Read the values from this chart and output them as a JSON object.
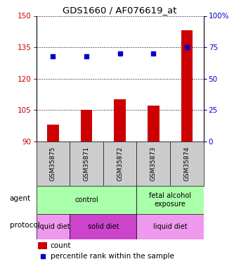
{
  "title": "GDS1660 / AF076619_at",
  "samples": [
    "GSM35875",
    "GSM35871",
    "GSM35872",
    "GSM35873",
    "GSM35874"
  ],
  "bar_values": [
    98,
    105,
    110,
    107,
    143
  ],
  "percentile_values": [
    68,
    68,
    70,
    70,
    75
  ],
  "left_ylim": [
    90,
    150
  ],
  "right_ylim": [
    0,
    100
  ],
  "left_yticks": [
    90,
    105,
    120,
    135,
    150
  ],
  "right_yticks": [
    0,
    25,
    50,
    75,
    100
  ],
  "bar_color": "#cc0000",
  "dot_color": "#0000cc",
  "agent_labels": [
    {
      "text": "control",
      "start": 0,
      "end": 3,
      "color": "#aaffaa"
    },
    {
      "text": "fetal alcohol\nexposure",
      "start": 3,
      "end": 5,
      "color": "#aaffaa"
    }
  ],
  "protocol_labels": [
    {
      "text": "liquid diet",
      "start": 0,
      "end": 1,
      "color": "#ee99ee"
    },
    {
      "text": "solid diet",
      "start": 1,
      "end": 3,
      "color": "#cc44cc"
    },
    {
      "text": "liquid diet",
      "start": 3,
      "end": 5,
      "color": "#ee99ee"
    }
  ],
  "sample_bg_color": "#cccccc",
  "legend_count_color": "#cc0000",
  "legend_pct_color": "#0000cc",
  "right_ylabel_color": "#0000cc",
  "left_ylabel_color": "#cc0000"
}
